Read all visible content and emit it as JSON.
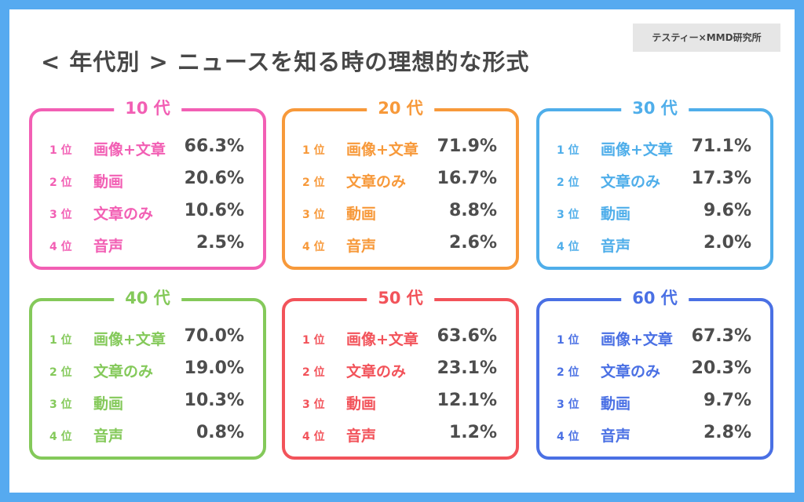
{
  "title": "< 年代別 > ニュースを知る時の理想的な形式",
  "credit": "テスティー×MMD研究所",
  "chart_data": [
    {
      "type": "table",
      "title": "10 代",
      "color": "#f25fb4",
      "rows": [
        {
          "rank": "1 位",
          "format": "画像+文章",
          "value": "66.3%"
        },
        {
          "rank": "2 位",
          "format": "動画",
          "value": "20.6%"
        },
        {
          "rank": "3 位",
          "format": "文章のみ",
          "value": "10.6%"
        },
        {
          "rank": "4 位",
          "format": "音声",
          "value": "2.5%"
        }
      ]
    },
    {
      "type": "table",
      "title": "20 代",
      "color": "#f7993a",
      "rows": [
        {
          "rank": "1 位",
          "format": "画像+文章",
          "value": "71.9%"
        },
        {
          "rank": "2 位",
          "format": "文章のみ",
          "value": "16.7%"
        },
        {
          "rank": "3 位",
          "format": "動画",
          "value": "8.8%"
        },
        {
          "rank": "4 位",
          "format": "音声",
          "value": "2.6%"
        }
      ]
    },
    {
      "type": "table",
      "title": "30 代",
      "color": "#4faeea",
      "rows": [
        {
          "rank": "1 位",
          "format": "画像+文章",
          "value": "71.1%"
        },
        {
          "rank": "2 位",
          "format": "文章のみ",
          "value": "17.3%"
        },
        {
          "rank": "3 位",
          "format": "動画",
          "value": "9.6%"
        },
        {
          "rank": "4 位",
          "format": "音声",
          "value": "2.0%"
        }
      ]
    },
    {
      "type": "table",
      "title": "40 代",
      "color": "#84c95a",
      "rows": [
        {
          "rank": "1 位",
          "format": "画像+文章",
          "value": "70.0%"
        },
        {
          "rank": "2 位",
          "format": "文章のみ",
          "value": "19.0%"
        },
        {
          "rank": "3 位",
          "format": "動画",
          "value": "10.3%"
        },
        {
          "rank": "4 位",
          "format": "音声",
          "value": "0.8%"
        }
      ]
    },
    {
      "type": "table",
      "title": "50 代",
      "color": "#f2535a",
      "rows": [
        {
          "rank": "1 位",
          "format": "画像+文章",
          "value": "63.6%"
        },
        {
          "rank": "2 位",
          "format": "文章のみ",
          "value": "23.1%"
        },
        {
          "rank": "3 位",
          "format": "動画",
          "value": "12.1%"
        },
        {
          "rank": "4 位",
          "format": "音声",
          "value": "1.2%"
        }
      ]
    },
    {
      "type": "table",
      "title": "60 代",
      "color": "#4a70e4",
      "rows": [
        {
          "rank": "1 位",
          "format": "画像+文章",
          "value": "67.3%"
        },
        {
          "rank": "2 位",
          "format": "文章のみ",
          "value": "20.3%"
        },
        {
          "rank": "3 位",
          "format": "動画",
          "value": "9.7%"
        },
        {
          "rank": "4 位",
          "format": "音声",
          "value": "2.8%"
        }
      ]
    }
  ]
}
